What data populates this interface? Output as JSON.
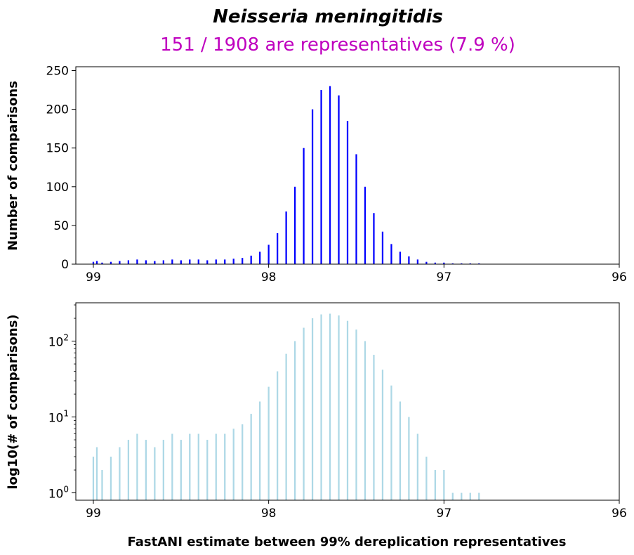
{
  "chart_data": {
    "type": "bar",
    "title": "Neisseria meningitidis",
    "subtitle": "151 / 1908 are representatives (7.9 %)",
    "xlabel": "FastANI estimate between 99% dereplication representatives",
    "xlim": [
      99.1,
      96.0
    ],
    "x_ticks": [
      "99",
      "98",
      "97",
      "96"
    ],
    "x_tick_values": [
      99,
      98,
      97,
      96
    ],
    "bin_width": 0.01,
    "histogram_bins": [
      {
        "x": 99.0,
        "count": 3
      },
      {
        "x": 98.98,
        "count": 4
      },
      {
        "x": 98.95,
        "count": 2
      },
      {
        "x": 98.9,
        "count": 3
      },
      {
        "x": 98.85,
        "count": 4
      },
      {
        "x": 98.8,
        "count": 5
      },
      {
        "x": 98.75,
        "count": 6
      },
      {
        "x": 98.7,
        "count": 5
      },
      {
        "x": 98.65,
        "count": 4
      },
      {
        "x": 98.6,
        "count": 5
      },
      {
        "x": 98.55,
        "count": 6
      },
      {
        "x": 98.5,
        "count": 5
      },
      {
        "x": 98.45,
        "count": 6
      },
      {
        "x": 98.4,
        "count": 6
      },
      {
        "x": 98.35,
        "count": 5
      },
      {
        "x": 98.3,
        "count": 6
      },
      {
        "x": 98.25,
        "count": 6
      },
      {
        "x": 98.2,
        "count": 7
      },
      {
        "x": 98.15,
        "count": 8
      },
      {
        "x": 98.1,
        "count": 11
      },
      {
        "x": 98.05,
        "count": 16
      },
      {
        "x": 98.0,
        "count": 25
      },
      {
        "x": 97.95,
        "count": 40
      },
      {
        "x": 97.9,
        "count": 68
      },
      {
        "x": 97.85,
        "count": 100
      },
      {
        "x": 97.8,
        "count": 150
      },
      {
        "x": 97.75,
        "count": 200
      },
      {
        "x": 97.7,
        "count": 225
      },
      {
        "x": 97.65,
        "count": 230
      },
      {
        "x": 97.6,
        "count": 218
      },
      {
        "x": 97.55,
        "count": 185
      },
      {
        "x": 97.5,
        "count": 142
      },
      {
        "x": 97.45,
        "count": 100
      },
      {
        "x": 97.4,
        "count": 66
      },
      {
        "x": 97.35,
        "count": 42
      },
      {
        "x": 97.3,
        "count": 26
      },
      {
        "x": 97.25,
        "count": 16
      },
      {
        "x": 97.2,
        "count": 10
      },
      {
        "x": 97.15,
        "count": 6
      },
      {
        "x": 97.1,
        "count": 3
      },
      {
        "x": 97.05,
        "count": 2
      },
      {
        "x": 97.0,
        "count": 2
      },
      {
        "x": 96.95,
        "count": 1
      },
      {
        "x": 96.9,
        "count": 1
      },
      {
        "x": 96.85,
        "count": 1
      },
      {
        "x": 96.8,
        "count": 1
      }
    ],
    "panels": [
      {
        "ylabel": "Number of comparisons",
        "yscale": "linear",
        "ylim": [
          0,
          255
        ],
        "y_ticks": [
          "0",
          "50",
          "100",
          "150",
          "200",
          "250"
        ],
        "y_tick_values": [
          0,
          50,
          100,
          150,
          200,
          250
        ],
        "color": "#0000ff"
      },
      {
        "ylabel": "log10(# of comparisons)",
        "yscale": "log",
        "ylim": [
          0.8,
          320
        ],
        "y_ticks": [
          {
            "base": "10",
            "exp": "0",
            "value": 1
          },
          {
            "base": "10",
            "exp": "1",
            "value": 10
          },
          {
            "base": "10",
            "exp": "2",
            "value": 100
          }
        ],
        "color": "#add8e6"
      }
    ],
    "grid": false,
    "legend": "none"
  }
}
